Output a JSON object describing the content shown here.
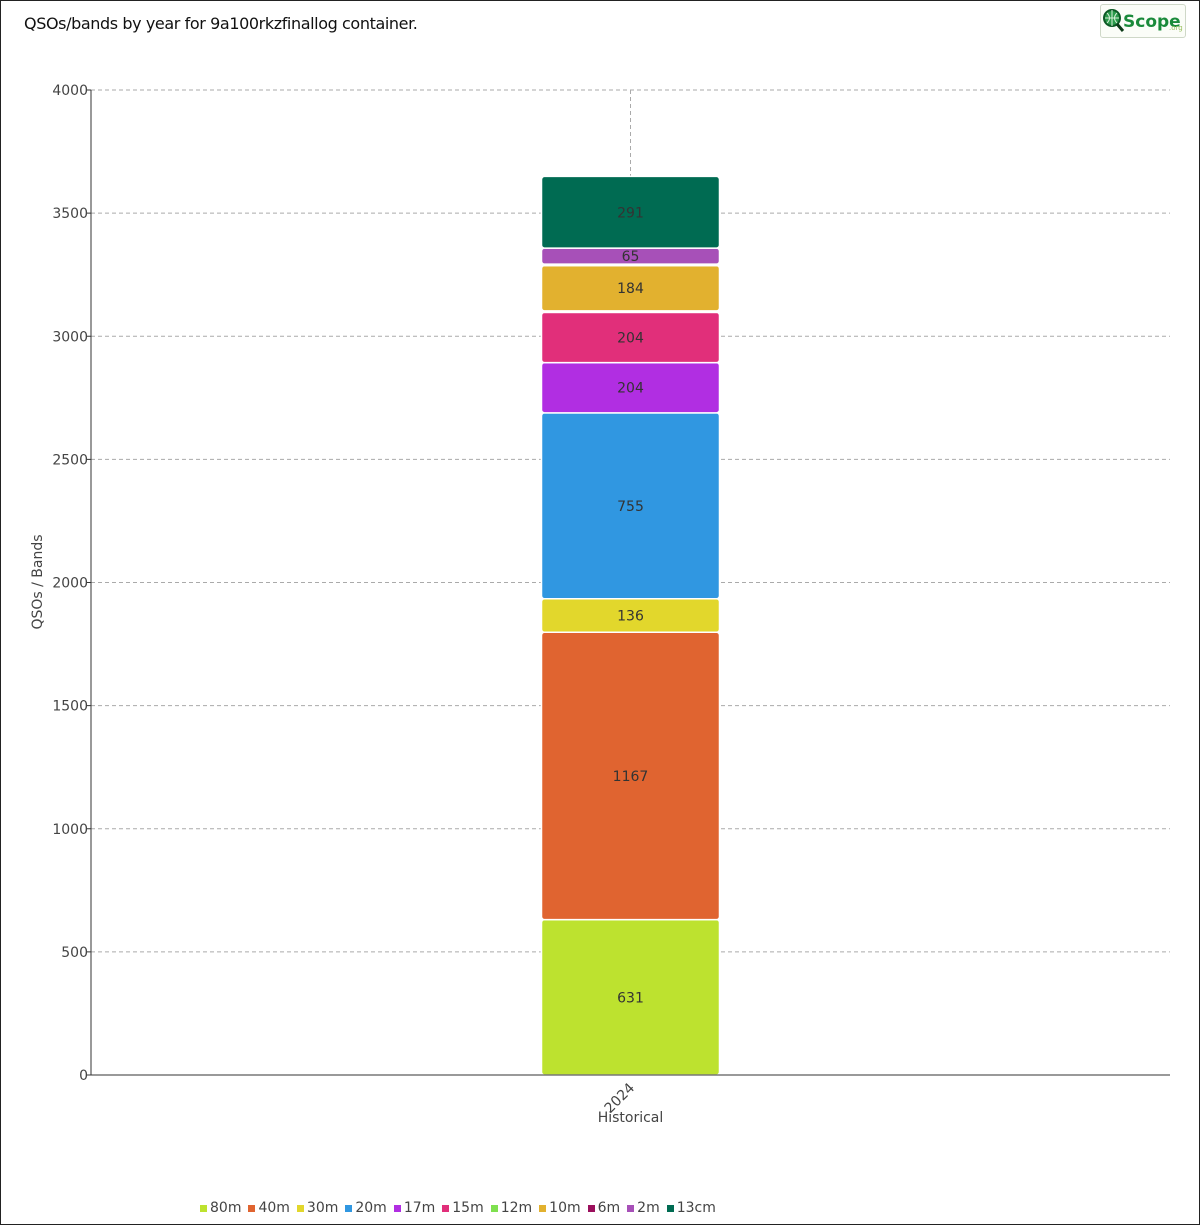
{
  "title": "QSOs/bands by year for 9a100rkzfinallog container.",
  "logo": {
    "main": "Scope",
    "suffix": ".org",
    "icon": "magnifier-globe-icon",
    "brand_color": "#1a8a3a"
  },
  "chart_data": {
    "type": "bar",
    "stacked": true,
    "categories": [
      "2024"
    ],
    "xlabel": "Historical",
    "ylabel": "QSOs / Bands",
    "ylim": [
      0,
      4000
    ],
    "yticks": [
      0,
      500,
      1000,
      1500,
      2000,
      2500,
      3000,
      3500,
      4000
    ],
    "grid": true,
    "legend_position": "bottom",
    "series": [
      {
        "name": "80m",
        "values": [
          631
        ],
        "color": "#bde22f"
      },
      {
        "name": "40m",
        "values": [
          1167
        ],
        "color": "#e06430"
      },
      {
        "name": "30m",
        "values": [
          136
        ],
        "color": "#e2d72c"
      },
      {
        "name": "20m",
        "values": [
          755
        ],
        "color": "#3097e1"
      },
      {
        "name": "17m",
        "values": [
          204
        ],
        "color": "#b12ee2"
      },
      {
        "name": "15m",
        "values": [
          204
        ],
        "color": "#e12f7a"
      },
      {
        "name": "12m",
        "values": [
          6
        ],
        "color": "#7fe04f"
      },
      {
        "name": "10m",
        "values": [
          184
        ],
        "color": "#e2b12f"
      },
      {
        "name": "6m",
        "values": [
          6
        ],
        "color": "#9b0f5c"
      },
      {
        "name": "2m",
        "values": [
          65
        ],
        "color": "#a750b8"
      },
      {
        "name": "13cm",
        "values": [
          291
        ],
        "color": "#006b52"
      }
    ],
    "data_labels": [
      {
        "series": "80m",
        "text": "631"
      },
      {
        "series": "40m",
        "text": "1167"
      },
      {
        "series": "30m",
        "text": "136"
      },
      {
        "series": "20m",
        "text": "755"
      },
      {
        "series": "17m",
        "text": "204"
      },
      {
        "series": "15m",
        "text": "204"
      },
      {
        "series": "10m",
        "text": "184"
      },
      {
        "series": "2m",
        "text": "65"
      },
      {
        "series": "13cm",
        "text": "291"
      }
    ]
  }
}
